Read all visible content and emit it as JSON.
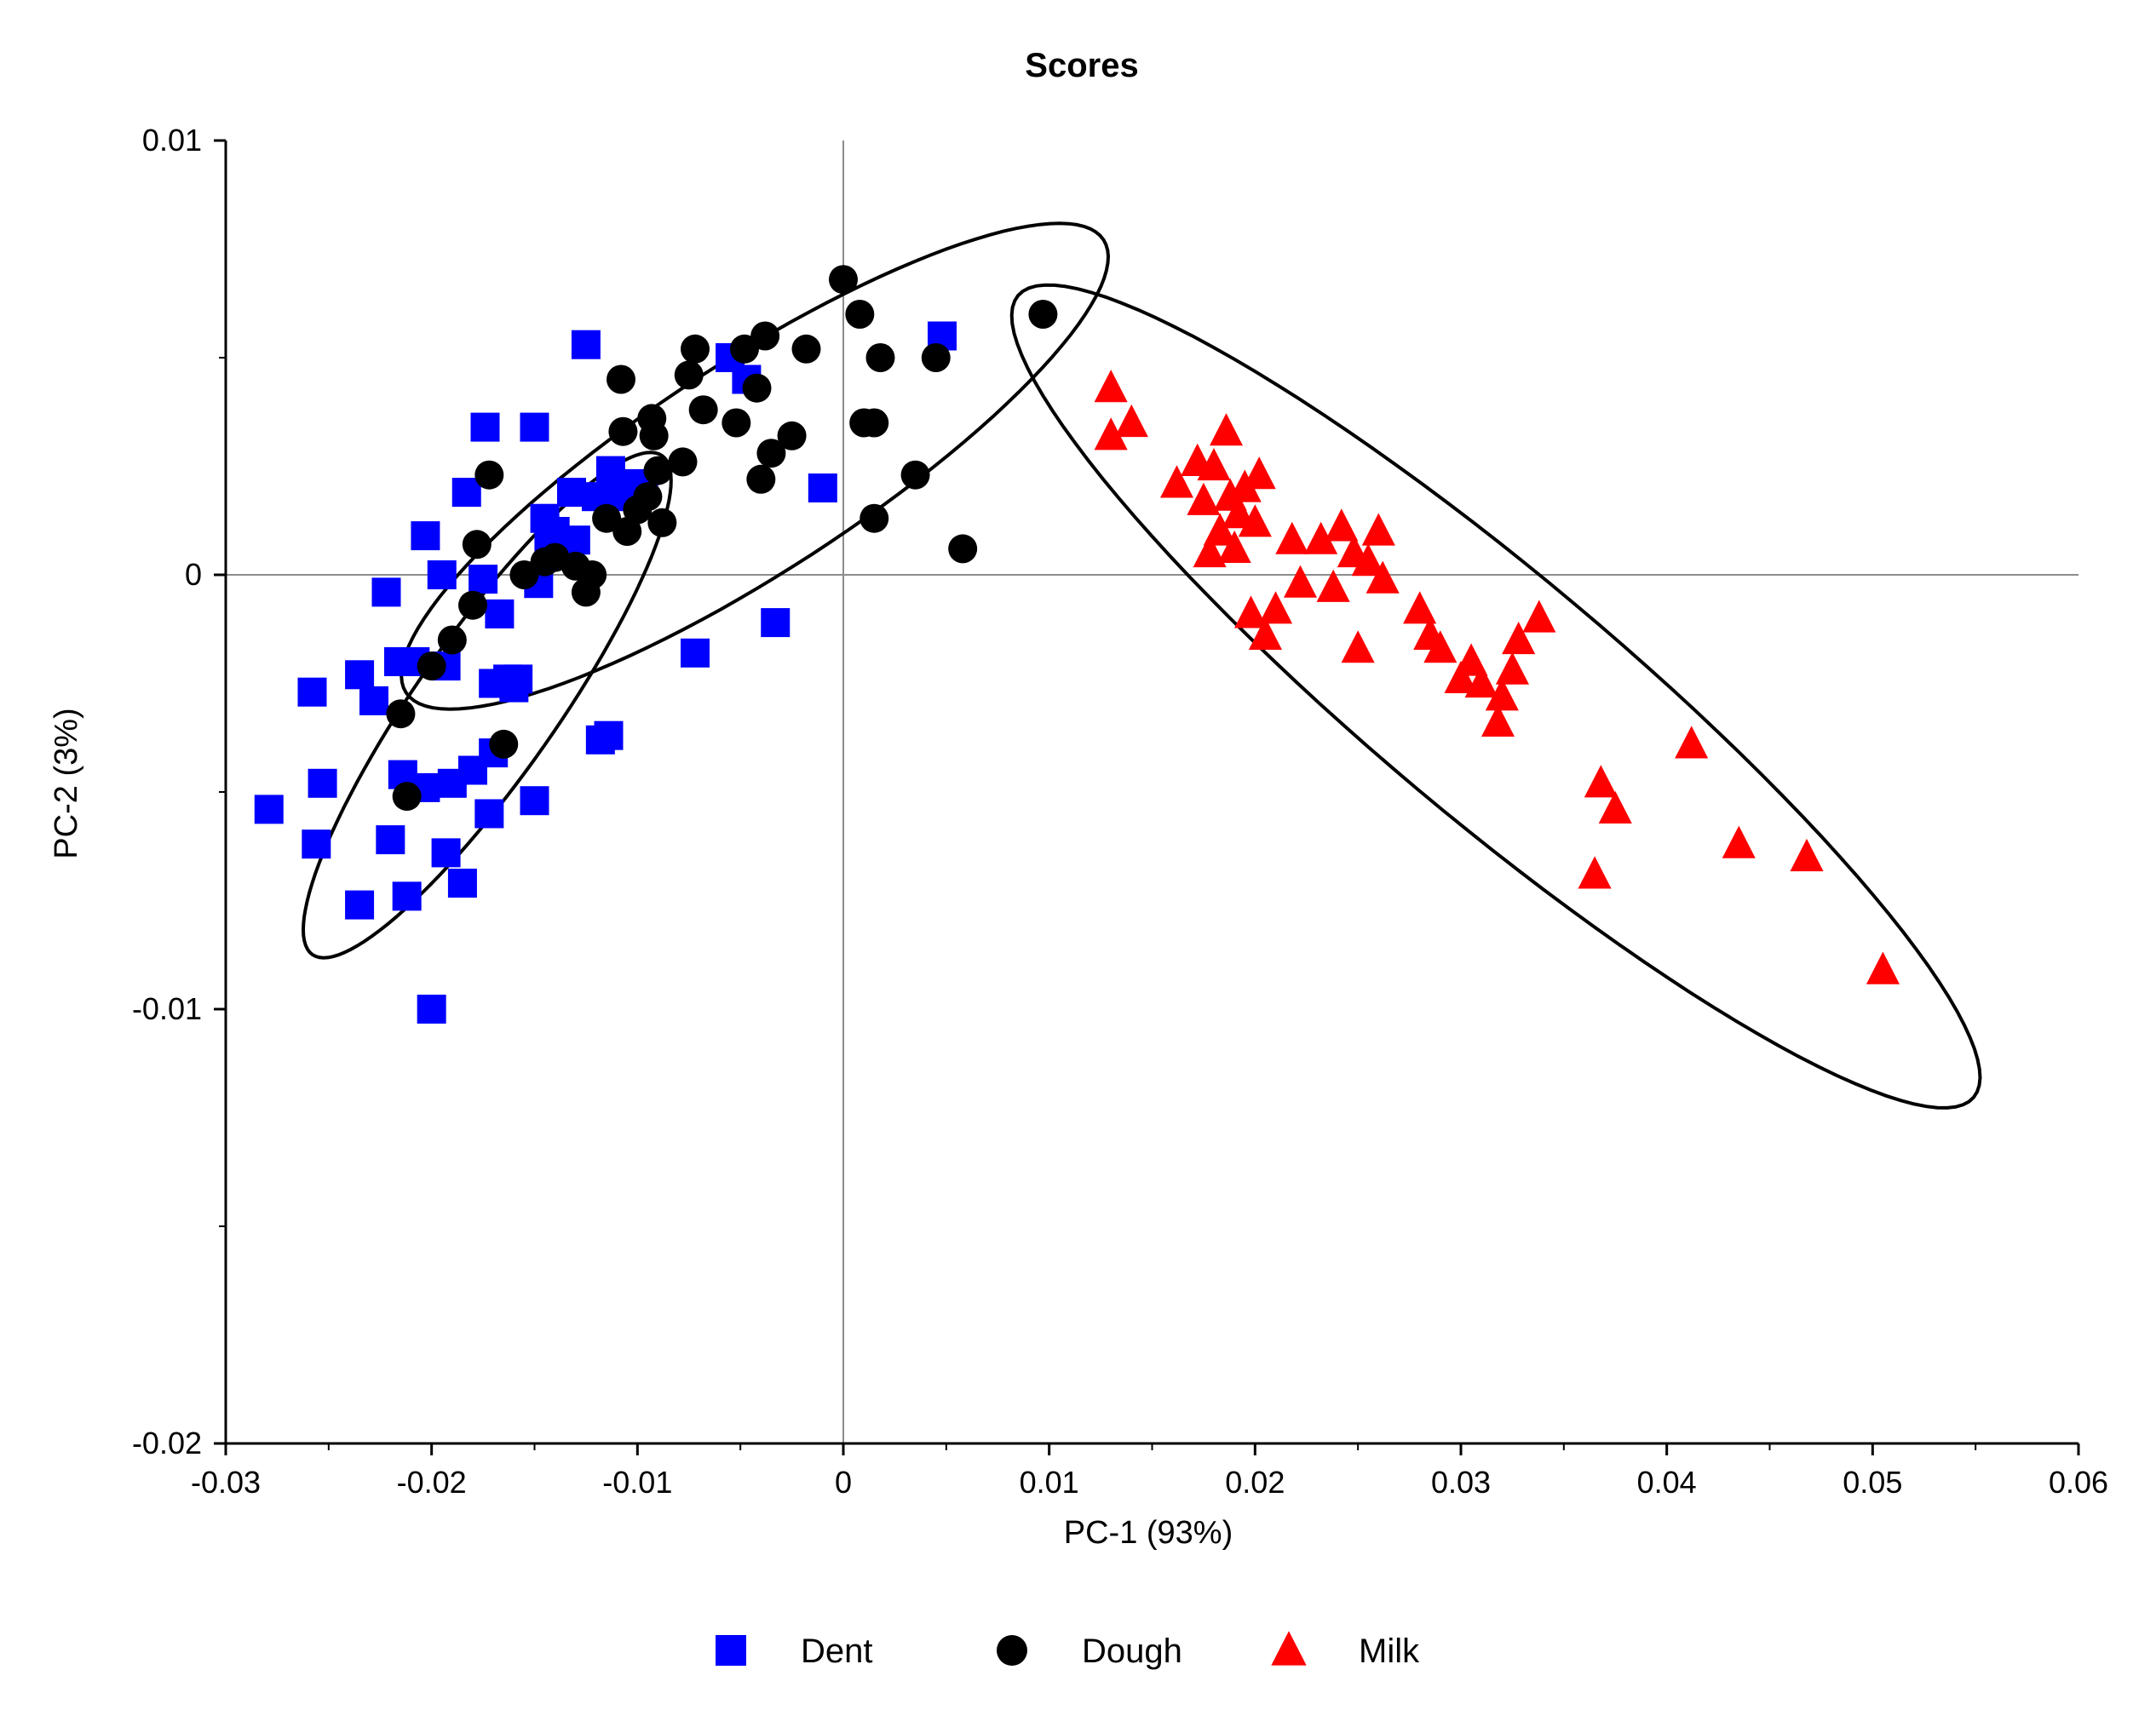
{
  "chart_data": {
    "type": "scatter",
    "title": "Scores",
    "xlabel": "PC-1 (93%)",
    "ylabel": "PC-2 (3%)",
    "xlim": [
      -0.03,
      0.06
    ],
    "ylim": [
      -0.02,
      0.01
    ],
    "xticks": [
      -0.03,
      -0.02,
      -0.01,
      0,
      0.01,
      0.02,
      0.03,
      0.04,
      0.05,
      0.06
    ],
    "xtick_labels": [
      "-0.03",
      "-0.02",
      "-0.01",
      "0",
      "0.01",
      "0.02",
      "0.03",
      "0.04",
      "0.05",
      "0.06"
    ],
    "yticks": [
      -0.02,
      -0.01,
      0,
      0.01
    ],
    "ytick_labels": [
      "-0.02",
      "-0.01",
      "0",
      "0.01"
    ],
    "legend_position": "bottom",
    "series": [
      {
        "name": "Dent",
        "marker": "square",
        "color": "#0000ff",
        "points": [
          [
            -0.0279,
            -0.0054
          ],
          [
            -0.0258,
            -0.0027
          ],
          [
            -0.0256,
            -0.0062
          ],
          [
            -0.0253,
            -0.0048
          ],
          [
            -0.0235,
            -0.0076
          ],
          [
            -0.0235,
            -0.0023
          ],
          [
            -0.0228,
            -0.0029
          ],
          [
            -0.0222,
            -0.0004
          ],
          [
            -0.022,
            -0.0061
          ],
          [
            -0.0216,
            -0.002
          ],
          [
            -0.0214,
            -0.0046
          ],
          [
            -0.0212,
            -0.0074
          ],
          [
            -0.0208,
            -0.002
          ],
          [
            -0.0203,
            0.0009
          ],
          [
            -0.0203,
            -0.0049
          ],
          [
            -0.02,
            -0.01
          ],
          [
            -0.0195,
            0.0
          ],
          [
            -0.0193,
            -0.0021
          ],
          [
            -0.0193,
            -0.0064
          ],
          [
            -0.019,
            -0.0048
          ],
          [
            -0.0185,
            -0.0071
          ],
          [
            -0.0183,
            0.0019
          ],
          [
            -0.018,
            -0.0045
          ],
          [
            -0.0175,
            -0.0001
          ],
          [
            -0.0174,
            0.0034
          ],
          [
            -0.0172,
            -0.0055
          ],
          [
            -0.017,
            -0.0025
          ],
          [
            -0.017,
            -0.0041
          ],
          [
            -0.0167,
            -0.0009
          ],
          [
            -0.0163,
            -0.0024
          ],
          [
            -0.016,
            -0.0026
          ],
          [
            -0.0158,
            -0.0024
          ],
          [
            -0.015,
            0.0034
          ],
          [
            -0.015,
            -0.0052
          ],
          [
            -0.0148,
            -0.0002
          ],
          [
            -0.0145,
            0.0013
          ],
          [
            -0.0143,
            0.0007
          ],
          [
            -0.014,
            0.001
          ],
          [
            -0.0132,
            0.0019
          ],
          [
            -0.013,
            0.0008
          ],
          [
            -0.0125,
            0.0053
          ],
          [
            -0.012,
            0.0018
          ],
          [
            -0.0118,
            -0.0038
          ],
          [
            -0.0114,
            -0.0037
          ],
          [
            -0.0113,
            0.0024
          ],
          [
            -0.011,
            0.0018
          ],
          [
            -0.0102,
            0.0021
          ],
          [
            -0.0097,
            0.002
          ],
          [
            -0.0072,
            -0.0018
          ],
          [
            -0.0055,
            0.005
          ],
          [
            -0.0047,
            0.0045
          ],
          [
            -0.0033,
            -0.0011
          ],
          [
            -0.001,
            0.002
          ],
          [
            0.0048,
            0.0055
          ]
        ]
      },
      {
        "name": "Dough",
        "marker": "circle",
        "color": "#000000",
        "points": [
          [
            -0.0215,
            -0.0032
          ],
          [
            -0.0212,
            -0.0051
          ],
          [
            -0.02,
            -0.0021
          ],
          [
            -0.019,
            -0.0015
          ],
          [
            -0.018,
            -0.0007
          ],
          [
            -0.0178,
            0.0007
          ],
          [
            -0.0172,
            0.0023
          ],
          [
            -0.0165,
            -0.0039
          ],
          [
            -0.0155,
            0.0
          ],
          [
            -0.0145,
            0.0003
          ],
          [
            -0.014,
            0.0004
          ],
          [
            -0.013,
            0.0002
          ],
          [
            -0.0125,
            -0.0004
          ],
          [
            -0.0122,
            0.0
          ],
          [
            -0.0115,
            0.0013
          ],
          [
            -0.0108,
            0.0045
          ],
          [
            -0.0107,
            0.0033
          ],
          [
            -0.0105,
            0.001
          ],
          [
            -0.01,
            0.0015
          ],
          [
            -0.0095,
            0.0018
          ],
          [
            -0.0093,
            0.0036
          ],
          [
            -0.0092,
            0.0032
          ],
          [
            -0.009,
            0.0024
          ],
          [
            -0.0088,
            0.0012
          ],
          [
            -0.0078,
            0.0026
          ],
          [
            -0.0075,
            0.0046
          ],
          [
            -0.0072,
            0.0052
          ],
          [
            -0.0068,
            0.0038
          ],
          [
            -0.0052,
            0.0035
          ],
          [
            -0.0048,
            0.0052
          ],
          [
            -0.0042,
            0.0043
          ],
          [
            -0.004,
            0.0022
          ],
          [
            -0.0038,
            0.0055
          ],
          [
            -0.0035,
            0.0028
          ],
          [
            -0.0025,
            0.0032
          ],
          [
            -0.0018,
            0.0052
          ],
          [
            0.0,
            0.0068
          ],
          [
            0.0008,
            0.006
          ],
          [
            0.001,
            0.0035
          ],
          [
            0.0015,
            0.0035
          ],
          [
            0.0018,
            0.005
          ],
          [
            0.0015,
            0.0013
          ],
          [
            0.0035,
            0.0023
          ],
          [
            0.0045,
            0.005
          ],
          [
            0.0058,
            0.0006
          ],
          [
            0.0097,
            0.006
          ]
        ]
      },
      {
        "name": "Milk",
        "marker": "triangle",
        "color": "#ff0000",
        "points": [
          [
            0.013,
            0.0043
          ],
          [
            0.013,
            0.0032
          ],
          [
            0.014,
            0.0035
          ],
          [
            0.0162,
            0.0021
          ],
          [
            0.0172,
            0.0026
          ],
          [
            0.0175,
            0.0017
          ],
          [
            0.0178,
            0.0005
          ],
          [
            0.018,
            0.0025
          ],
          [
            0.0183,
            0.001
          ],
          [
            0.0186,
            0.0033
          ],
          [
            0.0188,
            0.0018
          ],
          [
            0.019,
            0.0006
          ],
          [
            0.0192,
            0.0014
          ],
          [
            0.0195,
            0.002
          ],
          [
            0.0198,
            -0.0009
          ],
          [
            0.02,
            0.0012
          ],
          [
            0.0202,
            0.0023
          ],
          [
            0.0205,
            -0.0014
          ],
          [
            0.021,
            -0.0008
          ],
          [
            0.0218,
            0.0008
          ],
          [
            0.0222,
            -0.0002
          ],
          [
            0.0232,
            0.0008
          ],
          [
            0.0238,
            -0.0003
          ],
          [
            0.0242,
            0.0011
          ],
          [
            0.0248,
            0.0005
          ],
          [
            0.025,
            -0.0017
          ],
          [
            0.0255,
            0.0003
          ],
          [
            0.026,
            0.001
          ],
          [
            0.0262,
            -0.0001
          ],
          [
            0.028,
            -0.0008
          ],
          [
            0.0285,
            -0.0014
          ],
          [
            0.029,
            -0.0017
          ],
          [
            0.03,
            -0.0024
          ],
          [
            0.0305,
            -0.002
          ],
          [
            0.031,
            -0.0025
          ],
          [
            0.0318,
            -0.0034
          ],
          [
            0.032,
            -0.0028
          ],
          [
            0.0325,
            -0.0022
          ],
          [
            0.0328,
            -0.0015
          ],
          [
            0.0338,
            -0.001
          ],
          [
            0.0365,
            -0.0069
          ],
          [
            0.0368,
            -0.0048
          ],
          [
            0.0375,
            -0.0054
          ],
          [
            0.0412,
            -0.0039
          ],
          [
            0.0435,
            -0.0062
          ],
          [
            0.0468,
            -0.0065
          ],
          [
            0.0505,
            -0.0091
          ]
        ]
      }
    ],
    "ellipses": [
      {
        "group": "Dent",
        "cx": -0.0173,
        "cy": -0.003,
        "semi_major": 0.0148,
        "semi_minor": 0.0034,
        "angle_deg": 55
      },
      {
        "group": "Dough",
        "cx": -0.0043,
        "cy": 0.0025,
        "semi_major": 0.0202,
        "semi_minor": 0.0051,
        "angle_deg": 33
      },
      {
        "group": "Milk",
        "cx": 0.0317,
        "cy": -0.0028,
        "semi_major": 0.0303,
        "semi_minor": 0.0059,
        "angle_deg": -40
      }
    ]
  }
}
